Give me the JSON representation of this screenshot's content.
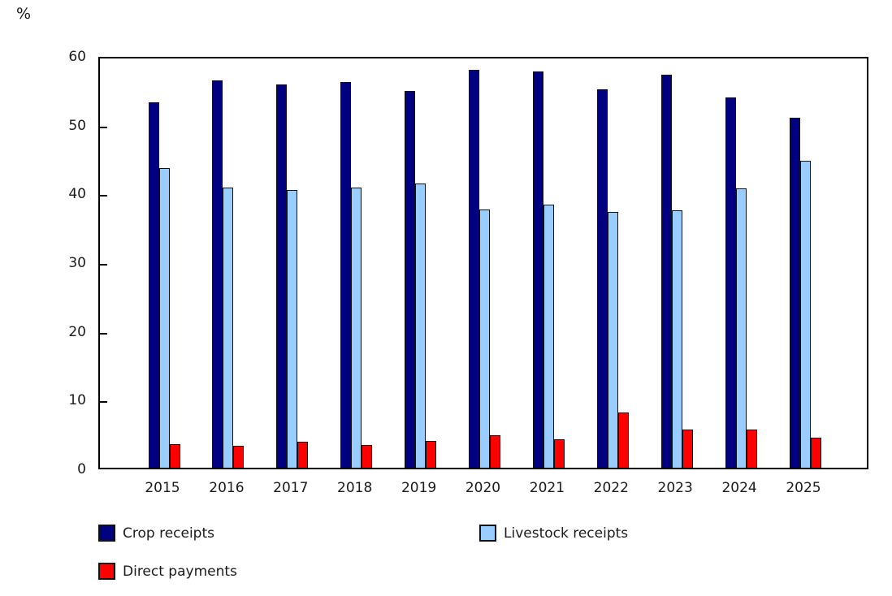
{
  "chart": {
    "unit_label": "%"
  },
  "chart_data": {
    "type": "bar",
    "title": "",
    "xlabel": "",
    "ylabel": "%",
    "ylim": [
      0,
      60
    ],
    "yticks": [
      0,
      10,
      20,
      30,
      40,
      50,
      60
    ],
    "grid": false,
    "legend_position": "bottom-left two-column",
    "bar_border_color": "#111111",
    "categories": [
      "2015",
      "2016",
      "2017",
      "2018",
      "2019",
      "2020",
      "2021",
      "2022",
      "2023",
      "2024",
      "2025"
    ],
    "series": [
      {
        "name": "Crop receipts",
        "color": "#000080",
        "values": [
          53.1,
          56.3,
          55.8,
          56.1,
          54.8,
          57.9,
          57.6,
          55.1,
          57.2,
          53.9,
          50.9
        ]
      },
      {
        "name": "Livestock receipts",
        "color": "#99ccff",
        "values": [
          43.6,
          40.7,
          40.4,
          40.8,
          41.3,
          37.6,
          38.3,
          37.2,
          37.4,
          40.6,
          44.6
        ]
      },
      {
        "name": "Direct payments",
        "color": "#ff0000",
        "values": [
          3.4,
          3.2,
          3.8,
          3.3,
          3.9,
          4.7,
          4.1,
          8.0,
          5.6,
          5.5,
          4.4
        ]
      }
    ]
  }
}
